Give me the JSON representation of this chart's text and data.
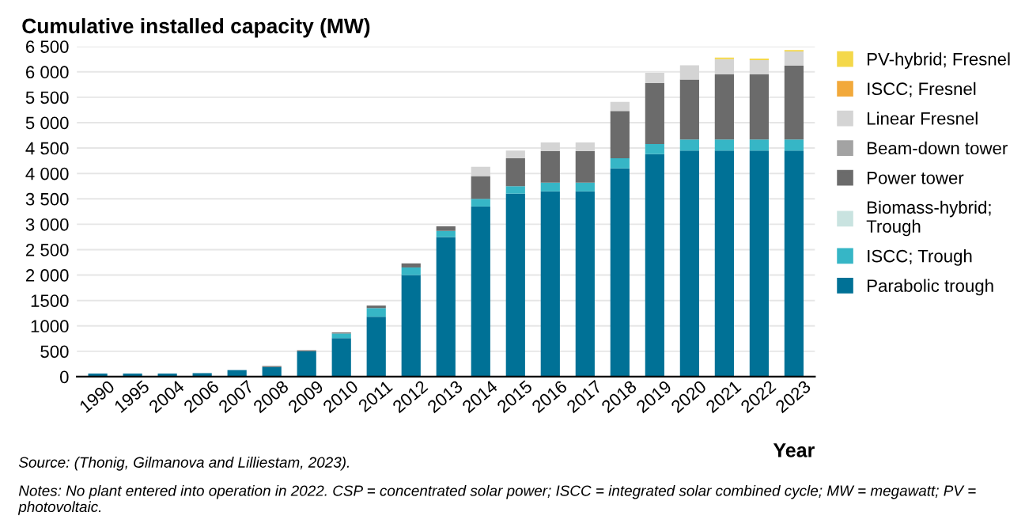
{
  "chart_data": {
    "type": "bar",
    "stacked": true,
    "title": "Cumulative installed capacity (MW)",
    "xlabel": "Year",
    "categories": [
      "1990",
      "1995",
      "2004",
      "2006",
      "2007",
      "2008",
      "2009",
      "2010",
      "2011",
      "2012",
      "2013",
      "2014",
      "2015",
      "2016",
      "2017",
      "2018",
      "2019",
      "2020",
      "2021",
      "2022",
      "2023"
    ],
    "series": [
      {
        "name": "Parabolic trough",
        "color": "#007196",
        "values": [
          60,
          60,
          60,
          70,
          130,
          190,
          500,
          760,
          1180,
          2000,
          2750,
          3350,
          3600,
          3650,
          3650,
          4100,
          4380,
          4450,
          4450,
          4450,
          4450
        ]
      },
      {
        "name": "ISCC; Trough",
        "color": "#36b6c6",
        "values": [
          0,
          0,
          0,
          0,
          0,
          0,
          0,
          90,
          170,
          150,
          120,
          150,
          150,
          170,
          170,
          200,
          200,
          220,
          220,
          220,
          220
        ]
      },
      {
        "name": "Biomass-hybrid; Trough",
        "color": "#c9e3e0",
        "values": [
          0,
          0,
          0,
          0,
          0,
          0,
          0,
          0,
          0,
          0,
          0,
          0,
          0,
          0,
          0,
          0,
          0,
          0,
          0,
          0,
          0
        ]
      },
      {
        "name": "Power tower",
        "color": "#6b6b6b",
        "values": [
          0,
          0,
          0,
          0,
          0,
          20,
          20,
          20,
          50,
          80,
          90,
          450,
          550,
          620,
          620,
          930,
          1200,
          1180,
          1280,
          1280,
          1450
        ]
      },
      {
        "name": "Beam-down tower",
        "color": "#a3a3a3",
        "values": [
          0,
          0,
          0,
          0,
          0,
          0,
          0,
          0,
          0,
          0,
          0,
          0,
          0,
          0,
          0,
          0,
          0,
          0,
          0,
          0,
          0
        ]
      },
      {
        "name": "Linear Fresnel",
        "color": "#d4d4d4",
        "values": [
          0,
          0,
          0,
          0,
          0,
          0,
          0,
          0,
          0,
          0,
          0,
          180,
          150,
          170,
          170,
          180,
          200,
          280,
          300,
          280,
          280
        ]
      },
      {
        "name": "ISCC; Fresnel",
        "color": "#f2a93b",
        "values": [
          0,
          0,
          0,
          0,
          0,
          0,
          0,
          0,
          0,
          0,
          0,
          0,
          0,
          0,
          0,
          0,
          0,
          0,
          0,
          0,
          0
        ]
      },
      {
        "name": "PV-hybrid; Fresnel",
        "color": "#f4d84a",
        "values": [
          0,
          0,
          0,
          0,
          0,
          0,
          0,
          0,
          0,
          0,
          0,
          0,
          0,
          0,
          0,
          0,
          0,
          0,
          30,
          30,
          30
        ]
      }
    ],
    "ylim": [
      0,
      6500
    ],
    "yticks": [
      0,
      500,
      {
        "value": 1000,
        "label": "1000"
      },
      {
        "value": 1500,
        "label": "1500"
      },
      {
        "value": 2000,
        "label": "2 000"
      },
      {
        "value": 2500,
        "label": "2 500"
      },
      {
        "value": 3000,
        "label": "3 000"
      },
      {
        "value": 3500,
        "label": "3 500"
      },
      {
        "value": 4000,
        "label": "4 000"
      },
      {
        "value": 4500,
        "label": "4 500"
      },
      {
        "value": 5000,
        "label": "5 000"
      },
      {
        "value": 5500,
        "label": "5 500"
      },
      {
        "value": 6000,
        "label": "6 000"
      },
      {
        "value": 6500,
        "label": "6 500"
      }
    ],
    "grid": "y",
    "legend": "right",
    "annotations": [
      "Source: (Thonig, Gilmanova and Lilliestam, 2023).",
      "Notes: No plant entered into operation in 2022. CSP = concentrated solar power; ISCC = integrated solar combined cycle; MW = megawatt; PV = photovoltaic."
    ]
  }
}
